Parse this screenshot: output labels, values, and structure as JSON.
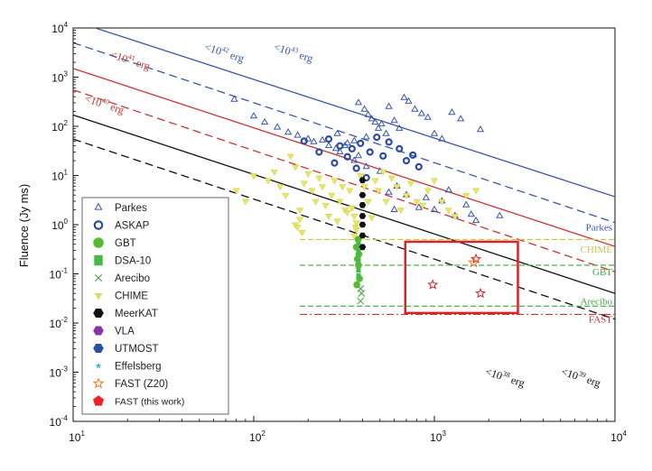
{
  "chart_data": {
    "type": "scatter",
    "title": "",
    "xlabel": "",
    "ylabel": "Fluence (Jy ms)",
    "xscale": "log",
    "yscale": "log",
    "xlim": [
      10,
      10000
    ],
    "ylim": [
      0.0001,
      10000
    ],
    "x_ticks": [
      {
        "base": "10",
        "exp": "1",
        "value": 10
      },
      {
        "base": "10",
        "exp": "2",
        "value": 100
      },
      {
        "base": "10",
        "exp": "3",
        "value": 1000
      },
      {
        "base": "10",
        "exp": "4",
        "value": 10000
      }
    ],
    "y_ticks": [
      {
        "base": "10",
        "exp": "-4",
        "value": 0.0001
      },
      {
        "base": "10",
        "exp": "-3",
        "value": 0.001
      },
      {
        "base": "10",
        "exp": "-2",
        "value": 0.01
      },
      {
        "base": "10",
        "exp": "-1",
        "value": 0.1
      },
      {
        "base": "10",
        "exp": "0",
        "value": 1
      },
      {
        "base": "10",
        "exp": "1",
        "value": 10
      },
      {
        "base": "10",
        "exp": "2",
        "value": 100
      },
      {
        "base": "10",
        "exp": "3",
        "value": 1000
      },
      {
        "base": "10",
        "exp": "4",
        "value": 10000
      }
    ],
    "energy_lines": [
      {
        "color": "#3a57a8",
        "dash": "solid",
        "x0": 10,
        "y0": 14000,
        "x1": 10000,
        "y1": 3.7
      },
      {
        "color": "#3a57a8",
        "dash": "dashed",
        "x0": 10,
        "y0": 5000,
        "x1": 10000,
        "y1": 1.1
      },
      {
        "color": "#cc3333",
        "dash": "solid",
        "x0": 10,
        "y0": 1500,
        "x1": 10000,
        "y1": 0.36
      },
      {
        "color": "#cc3333",
        "dash": "dashed",
        "x0": 10,
        "y0": 550,
        "x1": 10000,
        "y1": 0.11
      },
      {
        "color": "#111111",
        "dash": "solid",
        "x0": 10,
        "y0": 170,
        "x1": 10000,
        "y1": 0.04
      },
      {
        "color": "#111111",
        "dash": "dashed",
        "x0": 10,
        "y0": 55,
        "x1": 10000,
        "y1": 0.012
      }
    ],
    "energy_labels": [
      {
        "base": "<10",
        "exp": "41",
        "unit": "erg",
        "color": "#cc3333",
        "x": 16,
        "y": 2500
      },
      {
        "base": "<10",
        "exp": "40",
        "unit": "erg",
        "color": "#cc3333",
        "x": 11.5,
        "y": 320
      },
      {
        "base": "<10",
        "exp": "42",
        "unit": "erg",
        "color": "#3a57a8",
        "x": 53,
        "y": 3600
      },
      {
        "base": "<10",
        "exp": "43",
        "unit": "erg",
        "color": "#3a57a8",
        "x": 128,
        "y": 3600
      },
      {
        "base": "<10",
        "exp": "38",
        "unit": "erg",
        "color": "#111111",
        "x": 1900,
        "y": 0.0009
      },
      {
        "base": "<10",
        "exp": "39",
        "unit": "erg",
        "color": "#111111",
        "x": 5000,
        "y": 0.0009
      }
    ],
    "sensitivity_lines": [
      {
        "label": "Parkes",
        "color": "#3a57a8",
        "dash": "none",
        "y": null
      },
      {
        "label": "CHIME",
        "color": "#c8c83a",
        "dash": "6,3",
        "y": 0.5
      },
      {
        "label": "GBT",
        "color": "#3aaa3a",
        "dash": "6,3",
        "y": 0.15
      },
      {
        "label": "Arecibo",
        "color": "#3aaa3a",
        "dash": "6,3",
        "y": 0.022
      },
      {
        "label": "FAST",
        "color": "#cc3333",
        "dash": "8,3,2,3",
        "y": 0.015
      }
    ],
    "highlight_box": {
      "color": "#dd2222",
      "x0": 690,
      "x1": 2900,
      "y0": 0.016,
      "y1": 0.45
    },
    "legend": [
      {
        "label": "Parkes",
        "marker": "triangle-open",
        "color": "#3a57a8"
      },
      {
        "label": "ASKAP",
        "marker": "circle-open-thick",
        "color": "#2b4ba0"
      },
      {
        "label": "GBT",
        "marker": "circle-filled",
        "color": "#55bb33"
      },
      {
        "label": "DSA-10",
        "marker": "square-filled",
        "color": "#44bb44"
      },
      {
        "label": "Arecibo",
        "marker": "x",
        "color": "#55aa55"
      },
      {
        "label": "CHIME",
        "marker": "triangle-down-filled",
        "color": "#e0e060"
      },
      {
        "label": "MeerKAT",
        "marker": "hexagon-filled",
        "color": "#111111"
      },
      {
        "label": "VLA",
        "marker": "hexagon-filled",
        "color": "#8833aa"
      },
      {
        "label": "UTMOST",
        "marker": "hexagon-filled",
        "color": "#2c4ea8"
      },
      {
        "label": "Effelsberg",
        "marker": "star-small",
        "color": "#55aadd"
      },
      {
        "label": "FAST (Z20)",
        "marker": "star-open",
        "color": "#ee7722"
      },
      {
        "label": "FAST (this work)",
        "marker": "pentagon-filled",
        "color": "#ee2222"
      }
    ],
    "series": [
      {
        "name": "Parkes",
        "points": [
          [
            78,
            350
          ],
          [
            100,
            160
          ],
          [
            115,
            120
          ],
          [
            135,
            95
          ],
          [
            155,
            75
          ],
          [
            175,
            65
          ],
          [
            200,
            55
          ],
          [
            215,
            48
          ],
          [
            240,
            52
          ],
          [
            260,
            40
          ],
          [
            285,
            35
          ],
          [
            300,
            30
          ],
          [
            330,
            45
          ],
          [
            360,
            50
          ],
          [
            380,
            300
          ],
          [
            410,
            220
          ],
          [
            430,
            170
          ],
          [
            450,
            140
          ],
          [
            470,
            120
          ],
          [
            490,
            90
          ],
          [
            510,
            110
          ],
          [
            540,
            70
          ],
          [
            560,
            250
          ],
          [
            600,
            130
          ],
          [
            640,
            90
          ],
          [
            680,
            380
          ],
          [
            720,
            320
          ],
          [
            780,
            220
          ],
          [
            850,
            180
          ],
          [
            920,
            150
          ],
          [
            1000,
            70
          ],
          [
            1100,
            55
          ],
          [
            1250,
            190
          ],
          [
            1400,
            140
          ],
          [
            1800,
            85
          ],
          [
            380,
            25
          ],
          [
            420,
            15
          ],
          [
            500,
            12
          ],
          [
            560,
            4.5
          ],
          [
            620,
            6
          ],
          [
            700,
            4
          ],
          [
            820,
            2.2
          ],
          [
            900,
            3.5
          ],
          [
            1000,
            2
          ],
          [
            1100,
            3
          ],
          [
            1300,
            1.5
          ],
          [
            1500,
            2.5
          ],
          [
            1600,
            1.6
          ],
          [
            1700,
            1.2
          ],
          [
            2300,
            1.5
          ],
          [
            600,
            2
          ],
          [
            1200,
            5
          ],
          [
            290,
            70
          ],
          [
            320,
            40
          ],
          [
            420,
            60
          ],
          [
            360,
            20
          ]
        ]
      },
      {
        "name": "ASKAP",
        "points": [
          [
            190,
            50
          ],
          [
            230,
            30
          ],
          [
            260,
            55
          ],
          [
            280,
            18
          ],
          [
            300,
            40
          ],
          [
            330,
            24
          ],
          [
            350,
            35
          ],
          [
            370,
            14
          ],
          [
            390,
            45
          ],
          [
            440,
            30
          ],
          [
            480,
            60
          ],
          [
            420,
            9
          ],
          [
            520,
            25
          ],
          [
            560,
            48
          ],
          [
            640,
            35
          ],
          [
            700,
            20
          ],
          [
            760,
            26
          ],
          [
            820,
            15
          ]
        ]
      },
      {
        "name": "CHIME",
        "points": [
          [
            80,
            5
          ],
          [
            90,
            3
          ],
          [
            100,
            10
          ],
          [
            120,
            8
          ],
          [
            130,
            12
          ],
          [
            140,
            6
          ],
          [
            150,
            4
          ],
          [
            160,
            25
          ],
          [
            170,
            15
          ],
          [
            180,
            2
          ],
          [
            190,
            7
          ],
          [
            200,
            11
          ],
          [
            210,
            5
          ],
          [
            220,
            3
          ],
          [
            230,
            9
          ],
          [
            240,
            6
          ],
          [
            250,
            2.5
          ],
          [
            260,
            1.5
          ],
          [
            270,
            4
          ],
          [
            280,
            8
          ],
          [
            290,
            1.2
          ],
          [
            300,
            3
          ],
          [
            310,
            6
          ],
          [
            320,
            2
          ],
          [
            330,
            1.8
          ],
          [
            340,
            5
          ],
          [
            350,
            2.2
          ],
          [
            360,
            1.5
          ],
          [
            370,
            0.8
          ],
          [
            390,
            10
          ],
          [
            410,
            6
          ],
          [
            430,
            3
          ],
          [
            450,
            1.4
          ],
          [
            470,
            8
          ],
          [
            490,
            5
          ],
          [
            520,
            12
          ],
          [
            540,
            3
          ],
          [
            580,
            9
          ],
          [
            620,
            6
          ],
          [
            650,
            2
          ],
          [
            700,
            4
          ],
          [
            740,
            7
          ],
          [
            800,
            3
          ],
          [
            860,
            2.5
          ],
          [
            920,
            5
          ],
          [
            1000,
            8
          ],
          [
            1100,
            3
          ],
          [
            1200,
            2
          ],
          [
            1300,
            1.5
          ],
          [
            1500,
            4
          ],
          [
            1700,
            5
          ],
          [
            170,
            1
          ],
          [
            175,
            0.9
          ],
          [
            180,
            1.3
          ],
          [
            185,
            0.7
          ],
          [
            360,
            0.6
          ],
          [
            365,
            0.9
          ],
          [
            370,
            1.1
          ]
        ]
      },
      {
        "name": "GBT",
        "points": [
          [
            370,
            0.35
          ],
          [
            375,
            0.2
          ],
          [
            380,
            0.15
          ],
          [
            385,
            0.08
          ],
          [
            378,
            0.5
          ],
          [
            372,
            0.06
          ],
          [
            382,
            0.25
          ]
        ]
      },
      {
        "name": "DSA-10",
        "points": [
          [
            380,
            0.12
          ],
          [
            380,
            0.18
          ],
          [
            380,
            0.28
          ],
          [
            380,
            0.4
          ],
          [
            380,
            0.09
          ]
        ]
      },
      {
        "name": "Arecibo",
        "points": [
          [
            390,
            0.028
          ],
          [
            390,
            0.05
          ],
          [
            395,
            0.04
          ]
        ]
      },
      {
        "name": "MeerKAT",
        "points": [
          [
            400,
            8
          ],
          [
            400,
            4
          ],
          [
            400,
            2.5
          ],
          [
            400,
            1.5
          ],
          [
            400,
            1
          ],
          [
            400,
            0.6
          ],
          [
            400,
            0.35
          ]
        ]
      },
      {
        "name": "FAST (Z20)",
        "points": [
          [
            980,
            0.06
          ],
          [
            1800,
            0.04
          ],
          [
            1700,
            0.2
          ]
        ]
      },
      {
        "name": "FAST (this work)",
        "points": [
          [
            1650,
            0.17
          ]
        ]
      }
    ]
  }
}
